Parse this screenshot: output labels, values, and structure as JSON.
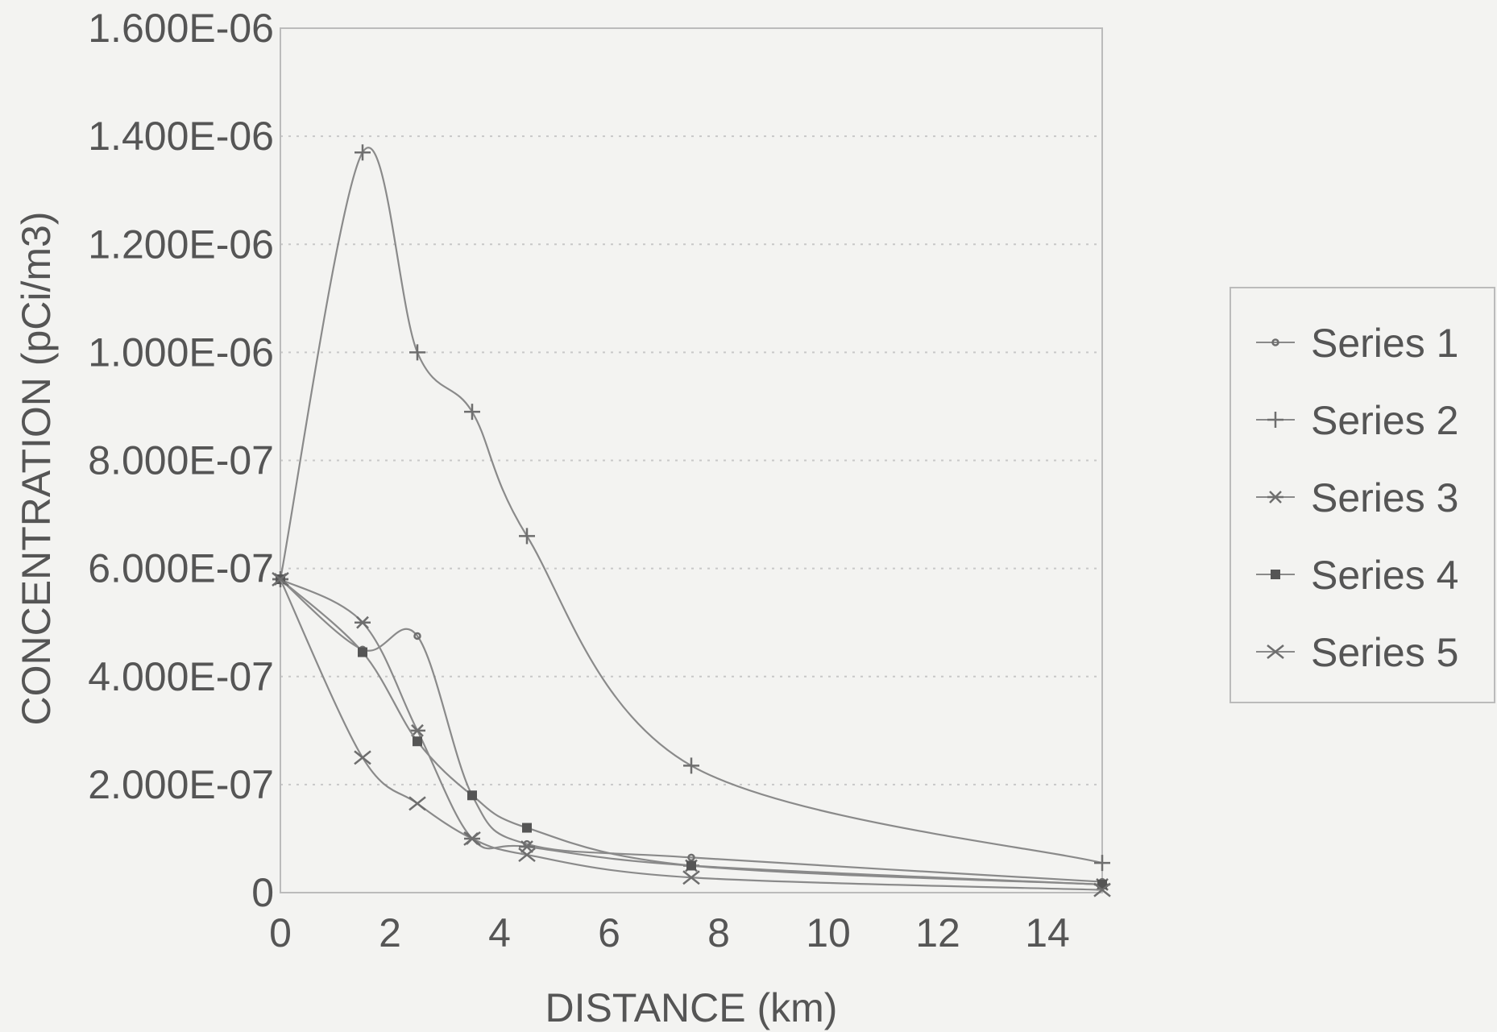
{
  "chart_data": {
    "type": "line",
    "title": "",
    "xlabel": "DISTANCE (km)",
    "ylabel": "CONCENTRATION (pCi/m3)",
    "xlim": [
      0,
      15
    ],
    "ylim": [
      0,
      1.6e-06
    ],
    "x_ticks": [
      0,
      2,
      4,
      6,
      8,
      10,
      12,
      14
    ],
    "x_tick_labels": [
      "0",
      "2",
      "4",
      "6",
      "8",
      "10",
      "12",
      "14"
    ],
    "y_ticks": [
      0,
      2e-07,
      4e-07,
      6e-07,
      8e-07,
      1e-06,
      1.2e-06,
      1.4e-06,
      1.6e-06
    ],
    "y_tick_labels": [
      "0",
      "2.000E-07",
      "4.000E-07",
      "6.000E-07",
      "8.000E-07",
      "1.000E-06",
      "1.200E-06",
      "1.400E-06",
      "1.600E-06"
    ],
    "grid": "horizontal-dotted",
    "legend_position": "right",
    "x": [
      0,
      1.5,
      2.5,
      3.5,
      4.5,
      7.5,
      15
    ],
    "series": [
      {
        "name": "Series 1",
        "marker": "small-circle",
        "values": [
          5.8e-07,
          4.5e-07,
          4.75e-07,
          1.8e-07,
          9e-08,
          6.5e-08,
          2e-08
        ]
      },
      {
        "name": "Series 2",
        "marker": "plus",
        "values": [
          5.8e-07,
          1.37e-06,
          1e-06,
          8.9e-07,
          6.6e-07,
          2.35e-07,
          5.5e-08
        ]
      },
      {
        "name": "Series 3",
        "marker": "asterisk",
        "values": [
          5.8e-07,
          5e-07,
          3e-07,
          1e-07,
          8.5e-08,
          5e-08,
          1.5e-08
        ]
      },
      {
        "name": "Series 4",
        "marker": "square",
        "values": [
          5.8e-07,
          4.45e-07,
          2.8e-07,
          1.8e-07,
          1.2e-07,
          5e-08,
          1.5e-08
        ]
      },
      {
        "name": "Series 5",
        "marker": "x",
        "values": [
          5.8e-07,
          2.5e-07,
          1.65e-07,
          1e-07,
          7e-08,
          2.8e-08,
          5e-09
        ]
      }
    ],
    "colors": {
      "line": "#8a8a8a",
      "grid": "#c8c8c8",
      "text": "#555555",
      "frame": "#bbbbbb",
      "background": "#f3f3f1"
    }
  }
}
